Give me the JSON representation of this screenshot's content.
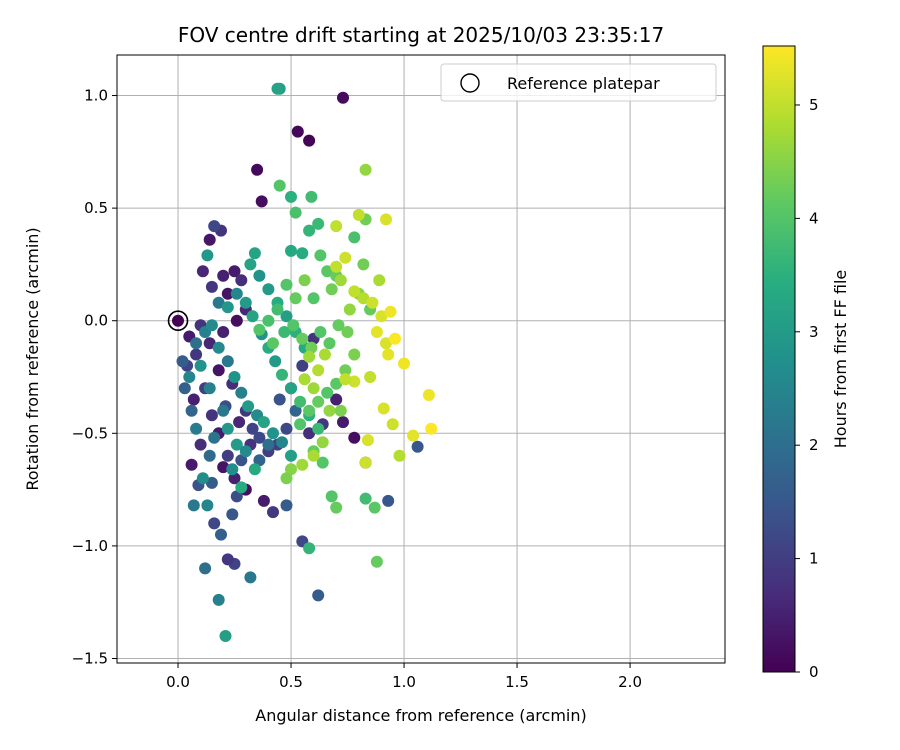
{
  "chart_data": {
    "type": "scatter",
    "title": "FOV centre drift starting at 2025/10/03 23:35:17",
    "xlabel": "Angular distance from reference (arcmin)",
    "ylabel": "Rotation from reference (arcmin)",
    "xlim": [
      -0.27,
      2.42
    ],
    "ylim": [
      -1.52,
      1.18
    ],
    "xticks": [
      0.0,
      0.5,
      1.0,
      1.5,
      2.0
    ],
    "xtick_labels": [
      "0.0",
      "0.5",
      "1.0",
      "1.5",
      "2.0"
    ],
    "yticks": [
      -1.5,
      -1.0,
      -0.5,
      0.0,
      0.5,
      1.0
    ],
    "ytick_labels": [
      "−1.5",
      "−1.0",
      "−0.5",
      "0.0",
      "0.5",
      "1.0"
    ],
    "grid": true,
    "legend": {
      "position": "top-right",
      "entries": [
        "Reference platepar"
      ]
    },
    "reference_point": {
      "x": 0.0,
      "y": 0.0
    },
    "colorbar": {
      "label": "Hours from first FF file",
      "colormap": "viridis",
      "range": [
        0,
        5.52
      ],
      "ticks": [
        0,
        1,
        2,
        3,
        4,
        5
      ],
      "tick_labels": [
        "0",
        "1",
        "2",
        "3",
        "4",
        "5"
      ]
    },
    "points": [
      [
        0.0,
        0.0,
        0.02
      ],
      [
        0.73,
        0.99,
        0.15
      ],
      [
        0.53,
        0.84,
        0.1
      ],
      [
        0.58,
        0.8,
        0.05
      ],
      [
        0.35,
        0.67,
        0.12
      ],
      [
        0.37,
        0.53,
        0.2
      ],
      [
        0.14,
        0.36,
        0.35
      ],
      [
        0.19,
        0.4,
        0.8
      ],
      [
        0.16,
        0.42,
        1.2
      ],
      [
        0.11,
        0.22,
        0.6
      ],
      [
        0.15,
        0.15,
        0.9
      ],
      [
        0.2,
        0.2,
        0.5
      ],
      [
        0.25,
        0.22,
        0.4
      ],
      [
        0.28,
        0.18,
        0.7
      ],
      [
        0.22,
        0.12,
        0.3
      ],
      [
        0.3,
        0.05,
        0.6
      ],
      [
        0.26,
        0.0,
        0.2
      ],
      [
        0.2,
        -0.05,
        0.5
      ],
      [
        0.1,
        -0.02,
        0.8
      ],
      [
        0.05,
        -0.07,
        0.4
      ],
      [
        0.08,
        -0.15,
        0.9
      ],
      [
        0.04,
        -0.2,
        1.1
      ],
      [
        0.14,
        -0.1,
        0.6
      ],
      [
        0.18,
        -0.22,
        0.3
      ],
      [
        0.24,
        -0.28,
        0.7
      ],
      [
        0.12,
        -0.3,
        1.0
      ],
      [
        0.07,
        -0.35,
        0.5
      ],
      [
        0.15,
        -0.42,
        0.8
      ],
      [
        0.21,
        -0.38,
        1.3
      ],
      [
        0.27,
        -0.45,
        0.6
      ],
      [
        0.3,
        -0.4,
        0.9
      ],
      [
        0.33,
        -0.48,
        1.1
      ],
      [
        0.18,
        -0.5,
        0.4
      ],
      [
        0.1,
        -0.55,
        0.7
      ],
      [
        0.06,
        -0.64,
        0.4
      ],
      [
        0.22,
        -0.6,
        1.0
      ],
      [
        0.28,
        -0.62,
        1.4
      ],
      [
        0.32,
        -0.55,
        0.8
      ],
      [
        0.36,
        -0.52,
        1.2
      ],
      [
        0.4,
        -0.58,
        1.0
      ],
      [
        0.25,
        -0.7,
        0.5
      ],
      [
        0.15,
        -0.72,
        1.6
      ],
      [
        0.2,
        -0.65,
        0.3
      ],
      [
        0.3,
        -0.75,
        0.2
      ],
      [
        0.38,
        -0.8,
        0.4
      ],
      [
        0.42,
        -0.85,
        0.9
      ],
      [
        0.6,
        -0.08,
        0.8
      ],
      [
        0.55,
        -0.2,
        1.0
      ],
      [
        0.5,
        -0.3,
        0.6
      ],
      [
        0.45,
        -0.35,
        1.4
      ],
      [
        0.52,
        -0.4,
        1.8
      ],
      [
        0.48,
        -0.48,
        1.2
      ],
      [
        0.44,
        -0.55,
        1.0
      ],
      [
        0.58,
        -0.5,
        0.7
      ],
      [
        0.64,
        -0.46,
        0.9
      ],
      [
        0.7,
        -0.35,
        0.5
      ],
      [
        0.73,
        -0.45,
        0.4
      ],
      [
        0.78,
        -0.52,
        0.2
      ],
      [
        0.83,
        -0.63,
        0.6
      ],
      [
        0.93,
        -0.8,
        1.5
      ],
      [
        1.06,
        -0.56,
        1.5
      ],
      [
        0.62,
        -1.22,
        1.6
      ],
      [
        0.55,
        -0.98,
        1.2
      ],
      [
        0.48,
        -0.82,
        1.6
      ],
      [
        0.4,
        -0.55,
        2.0
      ],
      [
        0.36,
        -0.62,
        1.8
      ],
      [
        0.26,
        -0.78,
        1.3
      ],
      [
        0.24,
        -0.86,
        1.5
      ],
      [
        0.19,
        -0.95,
        1.7
      ],
      [
        0.12,
        -1.1,
        2.0
      ],
      [
        0.25,
        -1.08,
        1.1
      ],
      [
        0.22,
        -1.06,
        0.9
      ],
      [
        0.32,
        -1.14,
        2.2
      ],
      [
        0.18,
        -1.24,
        2.4
      ],
      [
        0.21,
        -1.4,
        3.1
      ],
      [
        0.16,
        -0.9,
        1.2
      ],
      [
        0.13,
        -0.82,
        2.5
      ],
      [
        0.07,
        -0.82,
        2.2
      ],
      [
        0.09,
        -0.73,
        1.4
      ],
      [
        0.11,
        -0.7,
        2.7
      ],
      [
        0.14,
        -0.6,
        1.9
      ],
      [
        0.16,
        -0.52,
        2.1
      ],
      [
        0.08,
        -0.48,
        2.3
      ],
      [
        0.06,
        -0.4,
        1.8
      ],
      [
        0.03,
        -0.3,
        1.7
      ],
      [
        0.05,
        -0.25,
        2.5
      ],
      [
        0.02,
        -0.18,
        1.6
      ],
      [
        0.08,
        -0.1,
        2.0
      ],
      [
        0.12,
        -0.05,
        2.4
      ],
      [
        0.18,
        -0.12,
        2.6
      ],
      [
        0.22,
        -0.18,
        2.2
      ],
      [
        0.25,
        -0.25,
        2.8
      ],
      [
        0.28,
        -0.32,
        2.4
      ],
      [
        0.31,
        -0.38,
        3.0
      ],
      [
        0.35,
        -0.42,
        2.6
      ],
      [
        0.38,
        -0.45,
        3.2
      ],
      [
        0.42,
        -0.5,
        2.8
      ],
      [
        0.46,
        -0.54,
        2.5
      ],
      [
        0.5,
        -0.6,
        3.1
      ],
      [
        0.26,
        -0.55,
        3.0
      ],
      [
        0.22,
        -0.48,
        2.9
      ],
      [
        0.3,
        -0.58,
        2.6
      ],
      [
        0.34,
        -0.66,
        3.3
      ],
      [
        0.28,
        -0.74,
        3.4
      ],
      [
        0.24,
        -0.66,
        2.7
      ],
      [
        0.2,
        -0.4,
        2.2
      ],
      [
        0.14,
        -0.3,
        2.4
      ],
      [
        0.1,
        -0.2,
        2.8
      ],
      [
        0.15,
        -0.02,
        2.6
      ],
      [
        0.18,
        0.08,
        2.2
      ],
      [
        0.22,
        0.06,
        2.9
      ],
      [
        0.26,
        0.12,
        2.5
      ],
      [
        0.3,
        0.08,
        3.0
      ],
      [
        0.33,
        0.02,
        3.2
      ],
      [
        0.37,
        -0.06,
        2.8
      ],
      [
        0.4,
        -0.12,
        3.4
      ],
      [
        0.43,
        -0.18,
        3.0
      ],
      [
        0.46,
        -0.24,
        3.6
      ],
      [
        0.5,
        -0.3,
        3.2
      ],
      [
        0.54,
        -0.36,
        3.8
      ],
      [
        0.58,
        -0.42,
        3.5
      ],
      [
        0.62,
        -0.48,
        3.7
      ],
      [
        0.56,
        -0.12,
        3.3
      ],
      [
        0.52,
        -0.05,
        3.5
      ],
      [
        0.48,
        0.02,
        3.1
      ],
      [
        0.44,
        0.08,
        3.4
      ],
      [
        0.4,
        0.14,
        3.0
      ],
      [
        0.36,
        0.2,
        2.8
      ],
      [
        0.32,
        0.25,
        3.2
      ],
      [
        0.34,
        0.3,
        3.2
      ],
      [
        0.13,
        0.29,
        2.9
      ],
      [
        0.45,
        1.03,
        3.1
      ],
      [
        0.44,
        1.03,
        3.2
      ],
      [
        0.5,
        0.55,
        3.5
      ],
      [
        0.59,
        0.55,
        3.8
      ],
      [
        0.52,
        0.48,
        3.9
      ],
      [
        0.45,
        0.6,
        4.0
      ],
      [
        0.58,
        0.4,
        3.6
      ],
      [
        0.62,
        0.43,
        3.7
      ],
      [
        0.55,
        0.3,
        3.4
      ],
      [
        0.5,
        0.31,
        3.3
      ],
      [
        0.63,
        0.29,
        4.0
      ],
      [
        0.66,
        0.22,
        4.1
      ],
      [
        0.7,
        0.2,
        4.2
      ],
      [
        0.68,
        0.14,
        4.3
      ],
      [
        0.6,
        0.1,
        4.0
      ],
      [
        0.56,
        0.18,
        4.4
      ],
      [
        0.52,
        0.1,
        4.2
      ],
      [
        0.48,
        0.16,
        4.0
      ],
      [
        0.44,
        0.05,
        3.8
      ],
      [
        0.4,
        0.0,
        3.9
      ],
      [
        0.36,
        -0.04,
        4.0
      ],
      [
        0.42,
        -0.1,
        4.1
      ],
      [
        0.47,
        -0.05,
        3.7
      ],
      [
        0.51,
        -0.02,
        4.0
      ],
      [
        0.55,
        -0.08,
        4.2
      ],
      [
        0.59,
        -0.12,
        4.3
      ],
      [
        0.63,
        -0.05,
        4.0
      ],
      [
        0.67,
        -0.1,
        4.1
      ],
      [
        0.71,
        -0.02,
        4.2
      ],
      [
        0.75,
        -0.05,
        4.3
      ],
      [
        0.78,
        -0.15,
        4.4
      ],
      [
        0.74,
        -0.22,
        4.3
      ],
      [
        0.7,
        -0.28,
        4.1
      ],
      [
        0.66,
        -0.32,
        4.0
      ],
      [
        0.62,
        -0.36,
        4.2
      ],
      [
        0.58,
        -0.4,
        4.1
      ],
      [
        0.54,
        -0.46,
        4.0
      ],
      [
        0.6,
        -0.58,
        4.2
      ],
      [
        0.64,
        -0.63,
        4.0
      ],
      [
        0.68,
        -0.78,
        4.0
      ],
      [
        0.7,
        -0.83,
        4.2
      ],
      [
        0.83,
        -0.79,
        3.8
      ],
      [
        0.87,
        -0.83,
        4.1
      ],
      [
        0.88,
        -1.07,
        4.2
      ],
      [
        0.58,
        -1.01,
        3.6
      ],
      [
        0.78,
        0.37,
        3.9
      ],
      [
        0.83,
        0.45,
        4.3
      ],
      [
        0.85,
        0.05,
        4.2
      ],
      [
        0.8,
        0.12,
        4.5
      ],
      [
        0.82,
        0.25,
        4.3
      ],
      [
        0.76,
        0.05,
        4.6
      ],
      [
        0.72,
        0.18,
        4.7
      ],
      [
        0.7,
        0.42,
        5.0
      ],
      [
        0.8,
        0.47,
        5.0
      ],
      [
        0.83,
        0.67,
        4.6
      ],
      [
        0.89,
        0.18,
        4.8
      ],
      [
        0.92,
        0.45,
        5.2
      ],
      [
        0.74,
        0.28,
        5.1
      ],
      [
        0.7,
        0.24,
        5.0
      ],
      [
        0.78,
        0.13,
        5.0
      ],
      [
        0.82,
        0.1,
        4.9
      ],
      [
        0.86,
        0.08,
        5.1
      ],
      [
        0.9,
        0.02,
        5.2
      ],
      [
        0.94,
        0.04,
        5.4
      ],
      [
        0.88,
        -0.05,
        5.3
      ],
      [
        0.92,
        -0.1,
        5.2
      ],
      [
        0.96,
        -0.08,
        5.5
      ],
      [
        1.0,
        -0.19,
        5.4
      ],
      [
        0.93,
        -0.15,
        5.3
      ],
      [
        0.85,
        -0.25,
        5.0
      ],
      [
        0.78,
        -0.27,
        5.1
      ],
      [
        0.74,
        -0.26,
        5.0
      ],
      [
        0.84,
        -0.53,
        5.2
      ],
      [
        0.83,
        -0.63,
        5.1
      ],
      [
        0.91,
        -0.39,
        5.2
      ],
      [
        0.95,
        -0.46,
        5.1
      ],
      [
        0.98,
        -0.6,
        4.9
      ],
      [
        1.04,
        -0.51,
        5.3
      ],
      [
        1.11,
        -0.33,
        5.4
      ],
      [
        1.12,
        -0.48,
        5.5
      ],
      [
        0.64,
        -0.54,
        4.6
      ],
      [
        0.6,
        -0.6,
        4.8
      ],
      [
        0.67,
        -0.4,
        4.6
      ],
      [
        0.72,
        -0.4,
        4.4
      ],
      [
        0.55,
        -0.64,
        4.7
      ],
      [
        0.5,
        -0.66,
        4.5
      ],
      [
        0.48,
        -0.7,
        4.4
      ],
      [
        0.6,
        -0.3,
        4.7
      ],
      [
        0.56,
        -0.26,
        4.8
      ],
      [
        0.65,
        -0.15,
        4.8
      ],
      [
        0.62,
        -0.22,
        4.9
      ],
      [
        0.58,
        -0.16,
        4.7
      ]
    ]
  }
}
